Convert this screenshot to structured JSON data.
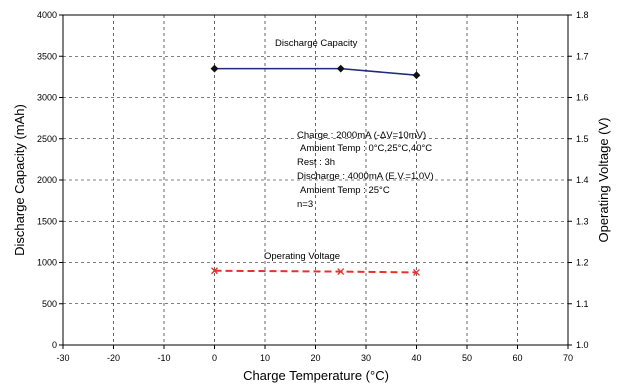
{
  "chart_data": {
    "type": "line",
    "xlabel": "Charge Temperature (°C)",
    "ylabel_left": "Discharge Capacity (mAh)",
    "ylabel_right": "Operating Voltage (V)",
    "xlim": [
      -30,
      70
    ],
    "ylim_left": [
      0,
      4000
    ],
    "ylim_right": [
      1.0,
      1.8
    ],
    "x_ticks": [
      "-30",
      "-20",
      "-10",
      "0",
      "10",
      "20",
      "30",
      "40",
      "50",
      "60",
      "70"
    ],
    "y_left_ticks": [
      "0",
      "500",
      "1000",
      "1500",
      "2000",
      "2500",
      "3000",
      "3500",
      "4000"
    ],
    "y_right_ticks": [
      "1.0",
      "1.1",
      "1.2",
      "1.3",
      "1.4",
      "1.5",
      "1.6",
      "1.7",
      "1.8"
    ],
    "grid": true,
    "series": [
      {
        "name": "Discharge Capacity",
        "axis": "left",
        "color": "#1f2a80",
        "marker": "diamond",
        "line_style": "solid",
        "x": [
          0,
          25,
          40
        ],
        "y": [
          3350,
          3350,
          3270
        ]
      },
      {
        "name": "Operating Voltage",
        "axis": "right",
        "color": "#e8312a",
        "marker": "x",
        "line_style": "dashed",
        "x": [
          0,
          25,
          40
        ],
        "y": [
          1.18,
          1.178,
          1.176
        ]
      }
    ],
    "annotation_lines": [
      "Charge : 2000mA (-ΔV=10mV)",
      "Ambient Temp : 0°C,25°C,40°C",
      "Rest : 3h",
      "Discharge : 4000mA (E.V.=1.0V)",
      "Ambient Temp : 25°C",
      "n=3"
    ]
  }
}
